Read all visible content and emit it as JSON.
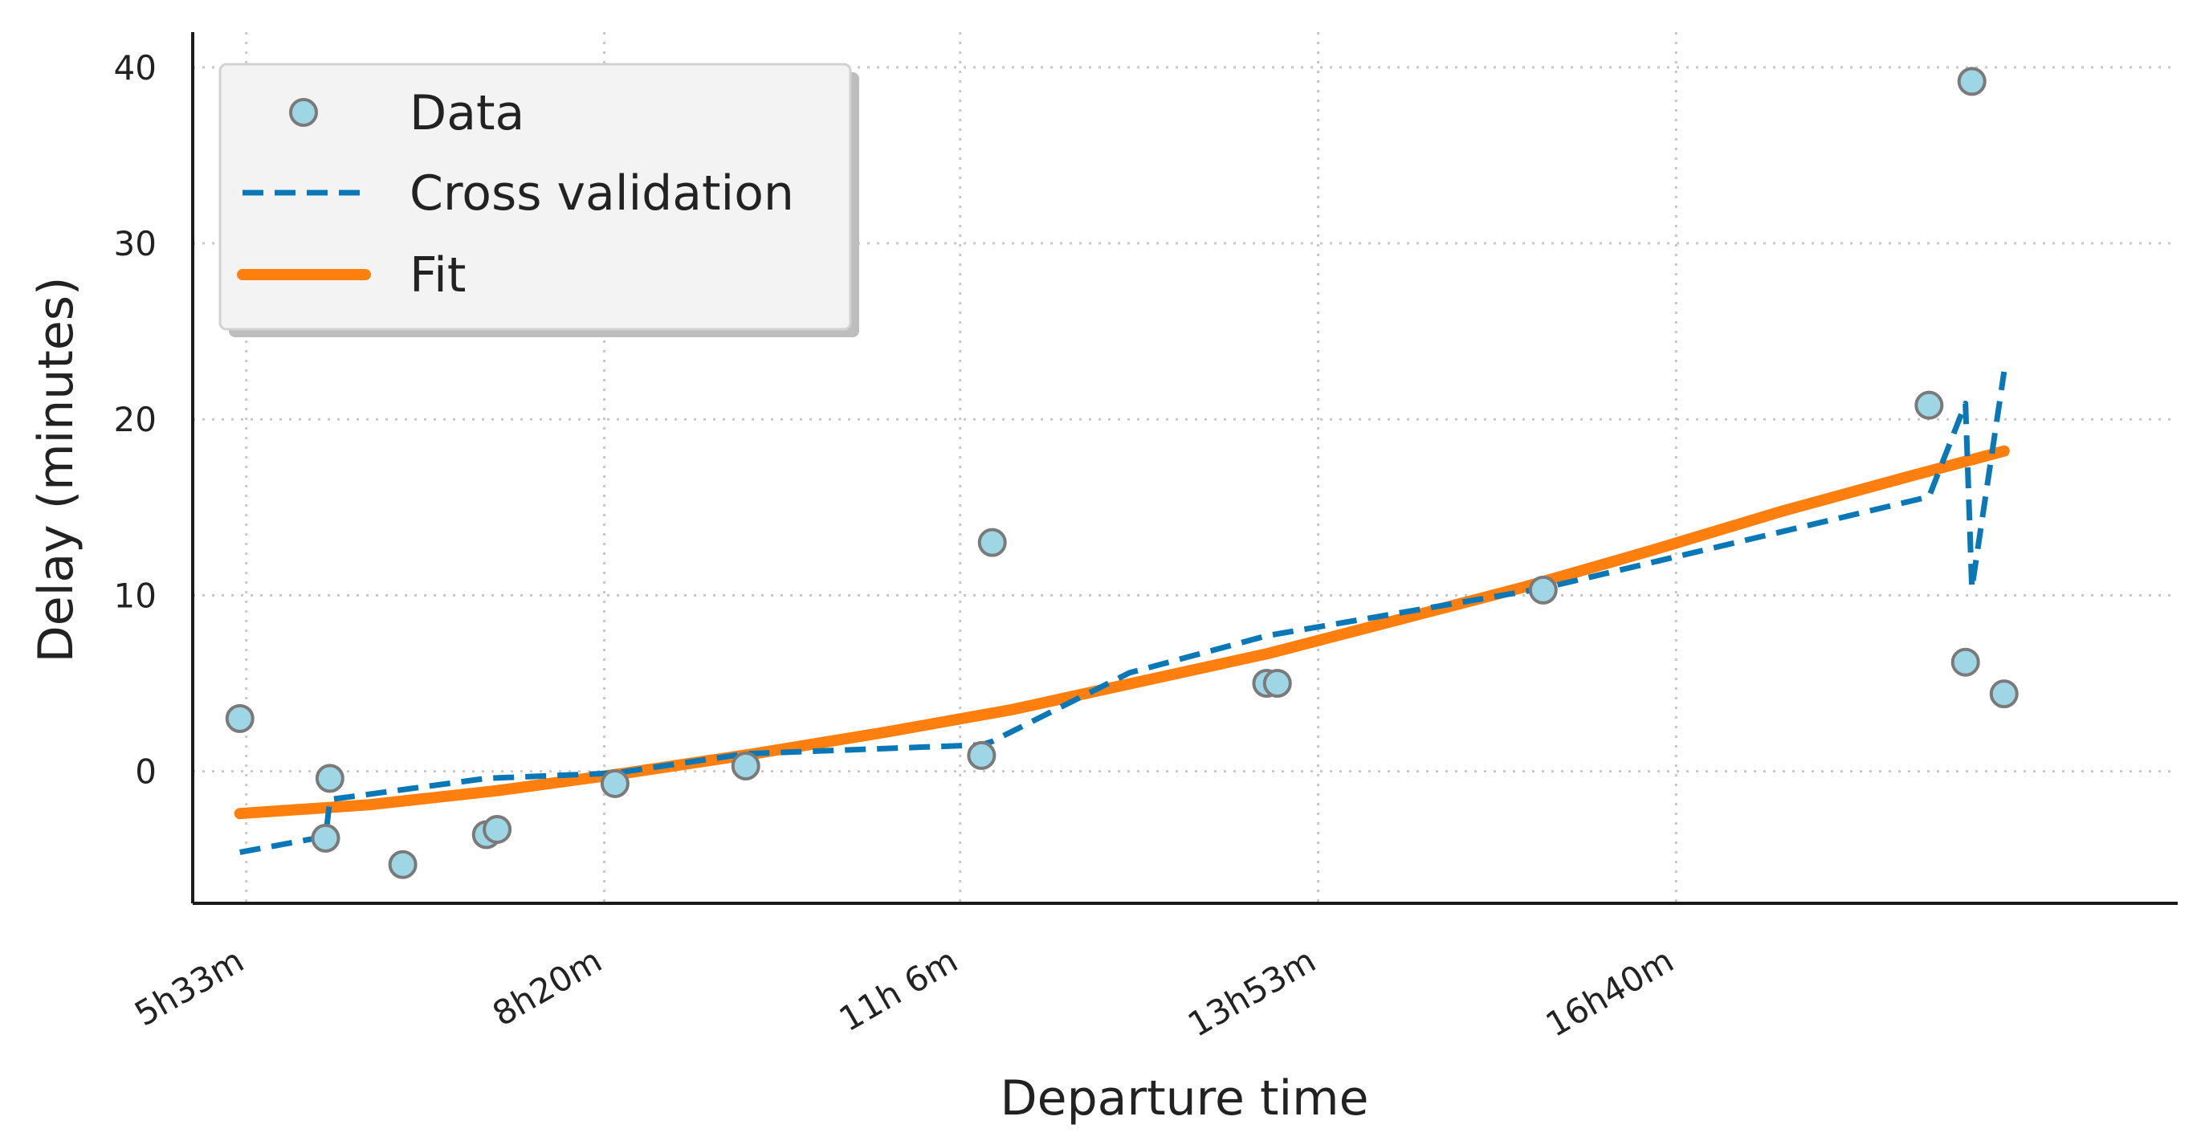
{
  "chart_data": {
    "type": "scatter",
    "title": "",
    "xlabel": "Departure time",
    "ylabel": "Delay (minutes)",
    "xlim": [
      "5h8m",
      "20h34m"
    ],
    "ylim": [
      -7.5,
      42
    ],
    "x_ticks": [
      "5h33m",
      "8h20m",
      "11h 6m",
      "13h53m",
      "16h40m"
    ],
    "y_ticks": [
      0,
      10,
      20,
      30,
      40
    ],
    "grid": true,
    "legend_position": "top-left",
    "legend": [
      "Data",
      "Cross validation",
      "Fit"
    ],
    "colors": {
      "data_fill": "#9fd6e6",
      "data_edge": "#7a7a7a",
      "cross_validation": "#0a78b6",
      "fit": "#ff7f0e"
    },
    "series": [
      {
        "name": "Data",
        "kind": "scatter",
        "points": [
          {
            "x": "5h30m",
            "y": 3.0
          },
          {
            "x": "6h10m",
            "y": -3.8
          },
          {
            "x": "6h12m",
            "y": -0.4
          },
          {
            "x": "6h46m",
            "y": -5.3
          },
          {
            "x": "7h25m",
            "y": -3.6
          },
          {
            "x": "7h30m",
            "y": -3.3
          },
          {
            "x": "8h25m",
            "y": -0.7
          },
          {
            "x": "9h26m",
            "y": 0.3
          },
          {
            "x": "11h16m",
            "y": 0.9
          },
          {
            "x": "11h21m",
            "y": 13.0
          },
          {
            "x": "13h29m",
            "y": 5.0
          },
          {
            "x": "13h34m",
            "y": 5.0
          },
          {
            "x": "15h38m",
            "y": 10.3
          },
          {
            "x": "18h38m",
            "y": 20.8
          },
          {
            "x": "18h55m",
            "y": 6.2
          },
          {
            "x": "18h58m",
            "y": 39.2
          },
          {
            "x": "19h13m",
            "y": 4.4
          }
        ]
      },
      {
        "name": "Cross validation",
        "kind": "line",
        "points": [
          {
            "x": "5h30m",
            "y": -4.6
          },
          {
            "x": "6h10m",
            "y": -3.7
          },
          {
            "x": "6h12m",
            "y": -1.6
          },
          {
            "x": "7h25m",
            "y": -0.4
          },
          {
            "x": "8h25m",
            "y": -0.1
          },
          {
            "x": "9h26m",
            "y": 1.0
          },
          {
            "x": "11h16m",
            "y": 1.5
          },
          {
            "x": "11h21m",
            "y": 1.7
          },
          {
            "x": "12h25m",
            "y": 5.6
          },
          {
            "x": "13h29m",
            "y": 7.7
          },
          {
            "x": "15h38m",
            "y": 10.4
          },
          {
            "x": "18h38m",
            "y": 15.6
          },
          {
            "x": "18h55m",
            "y": 20.9
          },
          {
            "x": "18h58m",
            "y": 10.4
          },
          {
            "x": "19h13m",
            "y": 22.7
          }
        ]
      },
      {
        "name": "Fit",
        "kind": "line",
        "points": [
          {
            "x": "5h30m",
            "y": -2.4
          },
          {
            "x": "6h30m",
            "y": -1.9
          },
          {
            "x": "7h30m",
            "y": -1.1
          },
          {
            "x": "8h30m",
            "y": -0.1
          },
          {
            "x": "9h30m",
            "y": 1.0
          },
          {
            "x": "10h30m",
            "y": 2.2
          },
          {
            "x": "11h30m",
            "y": 3.5
          },
          {
            "x": "12h30m",
            "y": 5.1
          },
          {
            "x": "13h30m",
            "y": 6.7
          },
          {
            "x": "14h30m",
            "y": 8.6
          },
          {
            "x": "15h30m",
            "y": 10.5
          },
          {
            "x": "16h30m",
            "y": 12.6
          },
          {
            "x": "17h30m",
            "y": 14.8
          },
          {
            "x": "18h30m",
            "y": 16.8
          },
          {
            "x": "19h13m",
            "y": 18.2
          }
        ]
      }
    ]
  }
}
